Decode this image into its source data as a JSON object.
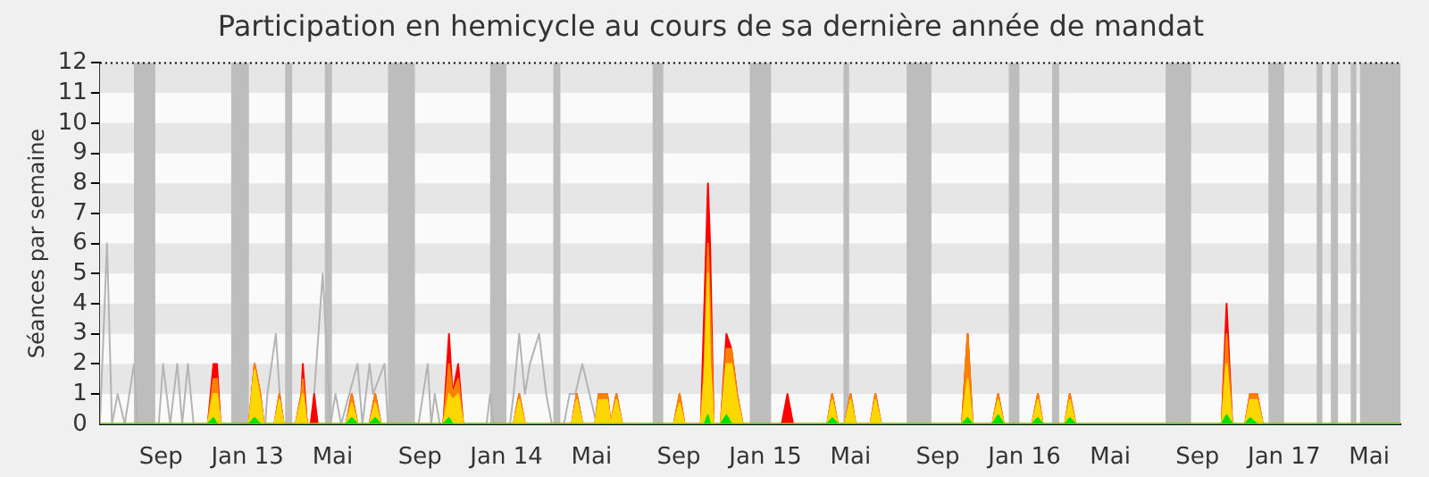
{
  "chart_data": {
    "type": "area",
    "title": "Participation en hemicycle au cours de sa dernière année de mandat",
    "ylabel": "Séances par semaine",
    "xlim": [
      "2012-06-07",
      "2017-06-14"
    ],
    "xticks": [
      {
        "value": "2012-09-01",
        "label": "Sep"
      },
      {
        "value": "2013-01-01",
        "label": "Jan 13"
      },
      {
        "value": "2013-05-01",
        "label": "Mai"
      },
      {
        "value": "2013-09-01",
        "label": "Sep"
      },
      {
        "value": "2014-01-01",
        "label": "Jan 14"
      },
      {
        "value": "2014-05-01",
        "label": "Mai"
      },
      {
        "value": "2014-09-01",
        "label": "Sep"
      },
      {
        "value": "2015-01-01",
        "label": "Jan 15"
      },
      {
        "value": "2015-05-01",
        "label": "Mai"
      },
      {
        "value": "2015-09-01",
        "label": "Sep"
      },
      {
        "value": "2016-01-01",
        "label": "Jan 16"
      },
      {
        "value": "2016-05-01",
        "label": "Mai"
      },
      {
        "value": "2016-09-01",
        "label": "Sep"
      },
      {
        "value": "2017-01-01",
        "label": "Jan 17"
      },
      {
        "value": "2017-05-01",
        "label": "Mai"
      }
    ],
    "ylim": [
      0,
      12
    ],
    "yticks": [
      0,
      1,
      2,
      3,
      4,
      5,
      6,
      7,
      8,
      9,
      10,
      11,
      12
    ],
    "legend": false,
    "marker": "none",
    "ref_lines": [
      {
        "axis": "y",
        "value": 12,
        "color": "#000000",
        "line_style": "dotted"
      }
    ],
    "bands": [
      {
        "axis": "y",
        "from": 1,
        "to": 2,
        "color": "#e6e6e6"
      },
      {
        "axis": "y",
        "from": 3,
        "to": 4,
        "color": "#e6e6e6"
      },
      {
        "axis": "y",
        "from": 5,
        "to": 6,
        "color": "#e6e6e6"
      },
      {
        "axis": "y",
        "from": 7,
        "to": 8,
        "color": "#e6e6e6"
      },
      {
        "axis": "y",
        "from": 9,
        "to": 10,
        "color": "#e6e6e6"
      },
      {
        "axis": "y",
        "from": 11,
        "to": 12,
        "color": "#e6e6e6"
      },
      {
        "axis": "x",
        "from": "2012-07-25",
        "to": "2012-08-24",
        "color": "#bdbdbd"
      },
      {
        "axis": "x",
        "from": "2012-12-09",
        "to": "2013-01-03",
        "color": "#bdbdbd"
      },
      {
        "axis": "x",
        "from": "2013-02-23",
        "to": "2013-03-05",
        "color": "#bdbdbd"
      },
      {
        "axis": "x",
        "from": "2013-04-20",
        "to": "2013-04-30",
        "color": "#bdbdbd"
      },
      {
        "axis": "x",
        "from": "2013-07-18",
        "to": "2013-08-25",
        "color": "#bdbdbd"
      },
      {
        "axis": "x",
        "from": "2013-12-09",
        "to": "2014-01-01",
        "color": "#bdbdbd"
      },
      {
        "axis": "x",
        "from": "2014-03-08",
        "to": "2014-03-18",
        "color": "#bdbdbd"
      },
      {
        "axis": "x",
        "from": "2014-07-26",
        "to": "2014-08-10",
        "color": "#bdbdbd"
      },
      {
        "axis": "x",
        "from": "2014-12-10",
        "to": "2015-01-09",
        "color": "#bdbdbd"
      },
      {
        "axis": "x",
        "from": "2015-04-21",
        "to": "2015-04-29",
        "color": "#bdbdbd"
      },
      {
        "axis": "x",
        "from": "2015-07-19",
        "to": "2015-08-23",
        "color": "#bdbdbd"
      },
      {
        "axis": "x",
        "from": "2015-12-10",
        "to": "2015-12-25",
        "color": "#bdbdbd"
      },
      {
        "axis": "x",
        "from": "2016-02-09",
        "to": "2016-02-19",
        "color": "#bdbdbd"
      },
      {
        "axis": "x",
        "from": "2016-07-18",
        "to": "2016-08-23",
        "color": "#bdbdbd"
      },
      {
        "axis": "x",
        "from": "2016-12-10",
        "to": "2017-01-01",
        "color": "#bdbdbd"
      },
      {
        "axis": "x",
        "from": "2017-02-16",
        "to": "2017-02-24",
        "color": "#bdbdbd"
      },
      {
        "axis": "x",
        "from": "2017-03-08",
        "to": "2017-03-18",
        "color": "#bdbdbd"
      },
      {
        "axis": "x",
        "from": "2017-04-05",
        "to": "2017-04-13",
        "color": "#bdbdbd"
      },
      {
        "axis": "x",
        "from": "2017-04-18",
        "to": "2017-06-14",
        "color": "#bdbdbd"
      }
    ],
    "x": [
      "2012-06-07",
      "2012-11-06",
      "2012-11-14",
      "2012-11-19",
      "2012-11-24",
      "2013-01-03",
      "2013-01-11",
      "2013-01-19",
      "2013-01-24",
      "2013-02-08",
      "2013-02-15",
      "2013-02-21",
      "2013-03-10",
      "2013-03-18",
      "2013-03-20",
      "2013-03-26",
      "2013-03-31",
      "2013-04-05",
      "2013-04-10",
      "2013-05-20",
      "2013-05-28",
      "2013-06-05",
      "2013-06-22",
      "2013-06-30",
      "2013-07-08",
      "2013-10-04",
      "2013-10-12",
      "2013-10-17",
      "2013-10-25",
      "2013-11-01",
      "2014-01-11",
      "2014-01-19",
      "2014-01-27",
      "2014-04-03",
      "2014-04-10",
      "2014-04-18",
      "2014-05-06",
      "2014-05-11",
      "2014-05-23",
      "2014-05-28",
      "2014-06-05",
      "2014-06-13",
      "2014-08-25",
      "2014-09-02",
      "2014-09-09",
      "2014-10-02",
      "2014-10-07",
      "2014-10-12",
      "2014-10-15",
      "2014-10-20",
      "2014-10-30",
      "2014-11-07",
      "2014-11-14",
      "2014-11-22",
      "2014-11-30",
      "2015-01-24",
      "2015-02-01",
      "2015-02-09",
      "2015-03-29",
      "2015-04-05",
      "2015-04-13",
      "2015-04-23",
      "2015-05-01",
      "2015-05-08",
      "2015-05-29",
      "2015-06-05",
      "2015-06-13",
      "2015-10-05",
      "2015-10-13",
      "2015-10-20",
      "2015-11-17",
      "2015-11-25",
      "2015-12-03",
      "2016-01-12",
      "2016-01-20",
      "2016-01-27",
      "2016-02-27",
      "2016-03-05",
      "2016-03-13",
      "2016-10-05",
      "2016-10-12",
      "2016-10-20",
      "2016-11-07",
      "2016-11-14",
      "2016-11-24",
      "2016-12-02",
      "2017-06-14"
    ],
    "series": [
      {
        "type": "line",
        "color": "#b4b4b4",
        "x": [
          "2012-06-07",
          "2012-06-17",
          "2012-06-24",
          "2012-07-02",
          "2012-07-12",
          "2012-07-25",
          "2012-07-30",
          "2012-08-29",
          "2012-09-04",
          "2012-09-14",
          "2012-09-24",
          "2012-10-01",
          "2012-10-09",
          "2012-10-17",
          "2013-01-26",
          "2013-01-29",
          "2013-02-10",
          "2013-02-18",
          "2013-04-02",
          "2013-04-17",
          "2013-04-28",
          "2013-05-05",
          "2013-05-13",
          "2013-06-05",
          "2013-06-12",
          "2013-06-22",
          "2013-06-27",
          "2013-07-13",
          "2013-07-18",
          "2013-08-30",
          "2013-09-12",
          "2013-09-17",
          "2013-09-22",
          "2013-09-29",
          "2013-12-04",
          "2013-12-09",
          "2013-12-14",
          "2014-01-06",
          "2014-01-11",
          "2014-01-19",
          "2014-01-27",
          "2014-02-03",
          "2014-02-16",
          "2014-02-26",
          "2014-03-06",
          "2014-03-23",
          "2014-03-31",
          "2014-04-08",
          "2014-04-18",
          "2014-04-28",
          "2014-05-08"
        ],
        "values": [
          0,
          6,
          0,
          1,
          0,
          2,
          0,
          0,
          2,
          0,
          2,
          0,
          2,
          0,
          0,
          1,
          3,
          0,
          0,
          5,
          0,
          1,
          0,
          2,
          0,
          2,
          1,
          2,
          0,
          0,
          2,
          0,
          1,
          0,
          0,
          1,
          0,
          0,
          1,
          3,
          1,
          2,
          3,
          1,
          0,
          0,
          1,
          1,
          2,
          1,
          0
        ]
      },
      {
        "color": "#ff0000",
        "values": [
          0,
          0,
          2,
          2,
          0,
          0,
          2,
          1,
          0,
          0,
          1,
          0,
          0,
          1,
          2,
          0,
          0,
          1,
          0,
          0,
          1,
          0,
          0,
          1,
          0,
          0,
          3,
          1,
          2,
          0,
          0,
          1,
          0,
          0,
          1,
          0,
          0,
          1,
          1,
          0,
          1,
          0,
          0,
          1,
          0,
          0,
          4,
          8,
          6,
          0,
          0,
          3,
          2.5,
          1,
          0,
          0,
          1,
          0,
          0,
          1,
          0,
          0,
          1,
          0,
          0,
          1,
          0,
          0,
          3,
          0,
          0,
          1,
          0,
          0,
          1,
          0,
          0,
          1,
          0,
          0,
          4,
          0,
          0,
          1,
          1,
          0,
          0
        ]
      },
      {
        "color": "#ff8000",
        "values": [
          0,
          0,
          1.5,
          1.5,
          0,
          0,
          2,
          1,
          0,
          0,
          1,
          0,
          0,
          1,
          1.5,
          0,
          0,
          0,
          0,
          0,
          1,
          0,
          0,
          1,
          0,
          0,
          2,
          1,
          1.5,
          0,
          0,
          1,
          0,
          0,
          1,
          0,
          0,
          1,
          1,
          0,
          1,
          0,
          0,
          1,
          0,
          0,
          2,
          6,
          4,
          0,
          0,
          2.5,
          2.5,
          1,
          0,
          0,
          0,
          0,
          0,
          1,
          0,
          0,
          1,
          0,
          0,
          1,
          0,
          0,
          3,
          0,
          0,
          1,
          0,
          0,
          1,
          0,
          0,
          1,
          0,
          0,
          3,
          0,
          0,
          1,
          1,
          0,
          0
        ]
      },
      {
        "color": "#ffd700",
        "values": [
          0,
          0,
          1,
          1,
          0,
          0,
          1.8,
          0.8,
          0,
          0,
          0.8,
          0,
          0,
          0.8,
          1,
          0,
          0,
          0,
          0,
          0,
          0.7,
          0,
          0,
          0.7,
          0,
          0,
          1,
          0.8,
          1,
          0,
          0,
          0.8,
          0,
          0,
          0.8,
          0,
          0,
          0.8,
          0.8,
          0,
          0.8,
          0,
          0,
          0.7,
          0,
          0,
          1.5,
          5,
          2,
          0,
          0,
          2,
          2,
          0.8,
          0,
          0,
          0,
          0,
          0,
          0.8,
          0,
          0,
          0.8,
          0,
          0,
          0.8,
          0,
          0,
          1.5,
          0,
          0,
          0.8,
          0,
          0,
          0.8,
          0,
          0,
          0.8,
          0,
          0,
          2,
          0,
          0,
          0.8,
          0.8,
          0,
          0
        ]
      },
      {
        "color": "#00e000",
        "values": [
          0,
          0,
          0.2,
          0,
          0,
          0,
          0.2,
          0,
          0,
          0,
          0,
          0,
          0,
          0,
          0,
          0,
          0,
          0,
          0,
          0,
          0.2,
          0,
          0,
          0.2,
          0,
          0,
          0.2,
          0,
          0,
          0,
          0,
          0,
          0,
          0,
          0,
          0,
          0,
          0,
          0,
          0,
          0,
          0,
          0,
          0,
          0,
          0,
          0,
          0.3,
          0,
          0,
          0,
          0.3,
          0,
          0,
          0,
          0,
          0,
          0,
          0,
          0.2,
          0,
          0,
          0,
          0,
          0,
          0,
          0,
          0,
          0.2,
          0,
          0,
          0.3,
          0,
          0,
          0.2,
          0,
          0,
          0.2,
          0,
          0,
          0.3,
          0,
          0,
          0.2,
          0,
          0,
          0
        ]
      }
    ]
  }
}
